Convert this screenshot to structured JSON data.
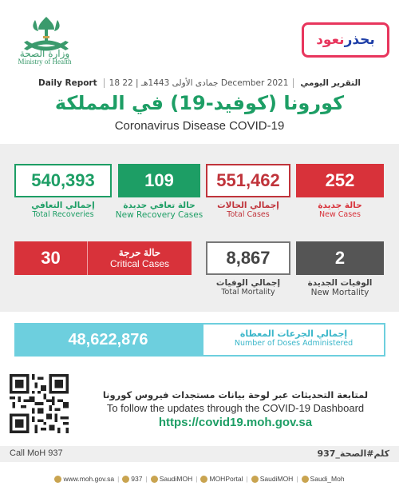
{
  "header": {
    "logo_ar": "وزارة الصحة",
    "logo_en": "Ministry of Health",
    "campaign_part1": "نعود",
    "campaign_part2": "بحذر",
    "report_ar": "التقرير اليومي",
    "report_date": "18 جمادى الأولى 1443هـ | 22 December 2021",
    "report_en": "Daily Report",
    "title_ar": "كورونا (كوفيد-19) في المملكة",
    "title_en": "Coronavirus Disease COVID-19"
  },
  "stats": {
    "new_cases": {
      "value": "252",
      "label_ar": "حالة جديدة",
      "label_en": "New Cases"
    },
    "total_cases": {
      "value": "551,462",
      "label_ar": "إجمالي الحالات",
      "label_en": "Total Cases"
    },
    "new_recoveries": {
      "value": "109",
      "label_ar": "حالة تعافي جديدة",
      "label_en": "New Recovery Cases"
    },
    "total_recoveries": {
      "value": "540,393",
      "label_ar": "إجمالي التعافي",
      "label_en": "Total Recoveries"
    },
    "new_mortality": {
      "value": "2",
      "label_ar": "الوفيات الجديدة",
      "label_en": "New Mortality"
    },
    "total_mortality": {
      "value": "8,867",
      "label_ar": "إجمالي الوفيات",
      "label_en": "Total Mortality"
    },
    "critical": {
      "value": "30",
      "label_ar": "حالة حرجة",
      "label_en": "Critical Cases"
    }
  },
  "doses": {
    "value": "48,622,876",
    "label_ar": "إجمالي الجرعات المعطاة",
    "label_en": "Number of Doses Administered"
  },
  "dashboard": {
    "text_ar": "لمتابعة التحديثات عبر لوحة بيانات مستجدات فيروس كورونا",
    "text_en": "To follow the updates through the COVID-19 Dashboard",
    "url": "https://covid19.moh.gov.sa"
  },
  "footer": {
    "call_en": "Call MoH 937",
    "call_ar": "كلم#الصحة_937",
    "socials": [
      {
        "icon": "globe-icon",
        "label": "www.moh.gov.sa"
      },
      {
        "icon": "phone-icon",
        "label": "937"
      },
      {
        "icon": "twitter-icon",
        "label": "SaudiMOH"
      },
      {
        "icon": "youtube-icon",
        "label": "MOHPortal"
      },
      {
        "icon": "instagram-icon",
        "label": "SaudiMOH"
      },
      {
        "icon": "snapchat-icon",
        "label": "Saudi_Moh"
      }
    ]
  },
  "colors": {
    "green": "#1d9e65",
    "red": "#d8323a",
    "gray": "#555555",
    "cyan": "#6dcfde",
    "pink": "#e8365d",
    "blue": "#1f3fa8"
  }
}
